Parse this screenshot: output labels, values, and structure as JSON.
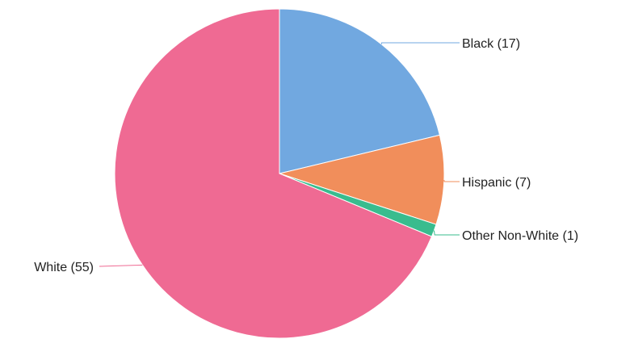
{
  "chart_data": {
    "type": "pie",
    "title": "",
    "legend": "none",
    "slices": [
      {
        "label": "Black (17)",
        "category": "Black",
        "value": 17,
        "color": "#71A8E0"
      },
      {
        "label": "Hispanic (7)",
        "category": "Hispanic",
        "value": 7,
        "color": "#F18E5B"
      },
      {
        "label": "Other Non-White (1)",
        "category": "Other Non-White",
        "value": 1,
        "color": "#39BC8E"
      },
      {
        "label": "White (55)",
        "category": "White",
        "value": 55,
        "color": "#EF6A93"
      }
    ]
  }
}
